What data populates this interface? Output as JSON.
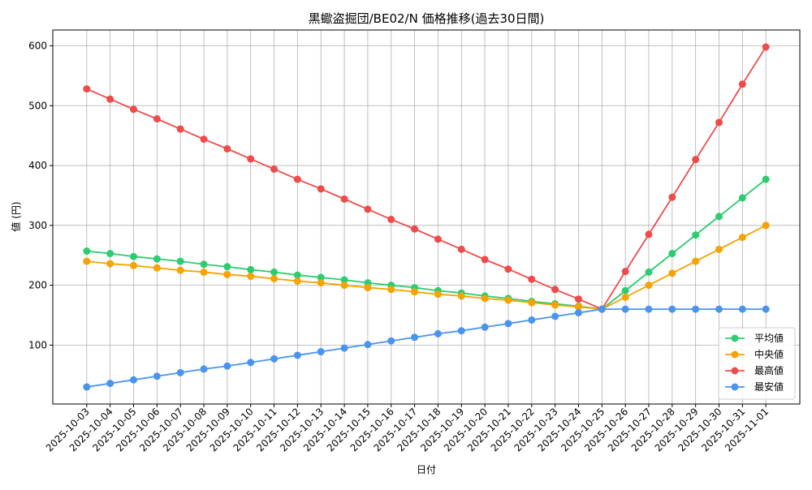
{
  "chart_data": {
    "type": "line",
    "title": "黒蠍盗掘団/BE02/N 価格推移(過去30日間)",
    "x_label": "日付",
    "y_label": "値 (円)",
    "categories": [
      "2025-10-03",
      "2025-10-04",
      "2025-10-05",
      "2025-10-06",
      "2025-10-07",
      "2025-10-08",
      "2025-10-09",
      "2025-10-10",
      "2025-10-11",
      "2025-10-12",
      "2025-10-13",
      "2025-10-14",
      "2025-10-15",
      "2025-10-16",
      "2025-10-17",
      "2025-10-18",
      "2025-10-19",
      "2025-10-20",
      "2025-10-21",
      "2025-10-22",
      "2025-10-23",
      "2025-10-24",
      "2025-10-25",
      "2025-10-26",
      "2025-10-27",
      "2025-10-28",
      "2025-10-29",
      "2025-10-30",
      "2025-10-31",
      "2025-11-01"
    ],
    "series": [
      {
        "name": "平均値",
        "color": "#2ecc71",
        "values": [
          257,
          253,
          248,
          244,
          240,
          235,
          231,
          226,
          222,
          217,
          213,
          209,
          204,
          200,
          196,
          191,
          187,
          182,
          178,
          173,
          169,
          165,
          160,
          191,
          222,
          253,
          284,
          315,
          346,
          377
        ]
      },
      {
        "name": "中央値",
        "color": "#f5a300",
        "values": [
          240,
          236,
          233,
          229,
          225,
          222,
          218,
          215,
          211,
          207,
          204,
          200,
          196,
          193,
          189,
          185,
          182,
          178,
          175,
          171,
          167,
          164,
          160,
          180,
          200,
          220,
          240,
          260,
          280,
          300
        ]
      },
      {
        "name": "最高値",
        "color": "#ef4b4b",
        "values": [
          528,
          511,
          494,
          478,
          461,
          444,
          428,
          411,
          394,
          377,
          361,
          344,
          327,
          310,
          294,
          277,
          260,
          243,
          227,
          210,
          193,
          177,
          160,
          223,
          285,
          347,
          410,
          472,
          536,
          598
        ]
      },
      {
        "name": "最安値",
        "color": "#4a94f0",
        "values": [
          30,
          36,
          42,
          48,
          54,
          60,
          65,
          71,
          77,
          83,
          89,
          95,
          101,
          107,
          113,
          119,
          124,
          130,
          136,
          142,
          148,
          154,
          160,
          160,
          160,
          160,
          160,
          160,
          160,
          160
        ]
      }
    ],
    "ylim": [
      1.6,
      626.4
    ],
    "yticks": [
      100,
      200,
      300,
      400,
      500,
      600
    ],
    "grid": true,
    "legend": "lower right"
  }
}
